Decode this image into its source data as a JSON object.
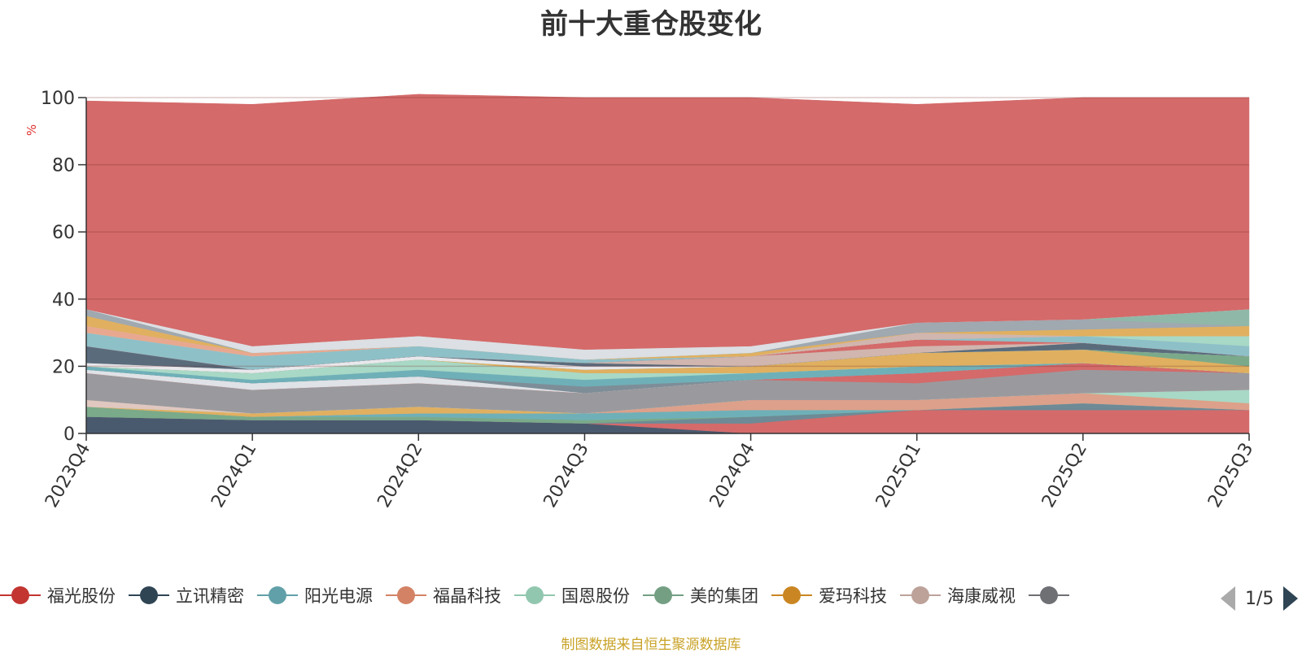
{
  "title": "前十大重仓股变化",
  "source_note": "制图数据来自恒生聚源数据库",
  "legend": {
    "items": [
      {
        "label": "福光股份",
        "color": "#c23531"
      },
      {
        "label": "立讯精密",
        "color": "#2f4554"
      },
      {
        "label": "阳光电源",
        "color": "#61a0a8"
      },
      {
        "label": "福晶科技",
        "color": "#d48265"
      },
      {
        "label": "国恩股份",
        "color": "#91c7ae"
      },
      {
        "label": "美的集团",
        "color": "#749f83"
      },
      {
        "label": "爱玛科技",
        "color": "#ca8622"
      },
      {
        "label": "海康威视",
        "color": "#bda29a"
      },
      {
        "label": "",
        "color": "#6e7074"
      }
    ],
    "pager_text": "1/5"
  },
  "chart_data": {
    "type": "area",
    "stacked": true,
    "title": "前十大重仓股变化",
    "ylabel": "%",
    "ylim": [
      0,
      100
    ],
    "yticks": [
      "0",
      "20",
      "40",
      "60",
      "80",
      "100"
    ],
    "categories": [
      "2023Q4",
      "2024Q1",
      "2024Q2",
      "2024Q3",
      "2024Q4",
      "2025Q1",
      "2025Q2",
      "2025Q3"
    ],
    "grid": true,
    "legend_position": "bottom",
    "series": [
      {
        "name": "",
        "color": "#4a5a6e",
        "values": [
          5,
          4,
          4,
          3,
          0,
          0,
          0,
          0
        ]
      },
      {
        "name": "",
        "color": "#d46a6a",
        "values": [
          0,
          0,
          0,
          0,
          3,
          7,
          7,
          7
        ]
      },
      {
        "name": "",
        "color": "#6d8a96",
        "values": [
          0,
          0,
          0,
          0,
          2,
          0,
          2,
          0
        ]
      },
      {
        "name": "",
        "color": "#7aaa8a",
        "values": [
          3,
          1,
          1,
          1,
          0,
          0,
          0,
          0
        ]
      },
      {
        "name": "",
        "color": "#6fb0b8",
        "values": [
          0,
          0,
          1,
          2,
          2,
          0,
          0,
          0
        ]
      },
      {
        "name": "",
        "color": "#dda08a",
        "values": [
          0,
          0,
          0,
          0,
          3,
          3,
          3,
          2
        ]
      },
      {
        "name": "",
        "color": "#e0b060",
        "values": [
          0,
          1,
          2,
          0,
          0,
          0,
          0,
          0
        ]
      },
      {
        "name": "",
        "color": "#a8d8c6",
        "values": [
          0,
          0,
          0,
          0,
          0,
          0,
          0,
          4
        ]
      },
      {
        "name": "",
        "color": "#e0c8c0",
        "values": [
          2,
          0,
          0,
          0,
          0,
          0,
          0,
          0
        ]
      },
      {
        "name": "",
        "color": "#9a9a9e",
        "values": [
          8,
          7,
          7,
          6,
          6,
          5,
          7,
          5
        ]
      },
      {
        "name": "",
        "color": "#d46a6a",
        "values": [
          0,
          0,
          0,
          0,
          0,
          3,
          2,
          0
        ]
      },
      {
        "name": "",
        "color": "#dfe2e6",
        "values": [
          1,
          2,
          2,
          0,
          0,
          0,
          0,
          0
        ]
      },
      {
        "name": "",
        "color": "#7e8e98",
        "values": [
          0,
          0,
          0,
          2,
          0,
          0,
          0,
          0
        ]
      },
      {
        "name": "",
        "color": "#6fb0b8",
        "values": [
          1,
          1,
          2,
          2,
          2,
          2,
          0,
          0
        ]
      },
      {
        "name": "",
        "color": "#a8d8c6",
        "values": [
          0,
          2,
          3,
          2,
          0,
          0,
          0,
          0
        ]
      },
      {
        "name": "",
        "color": "#e0b060",
        "values": [
          0,
          0,
          0,
          1,
          2,
          4,
          4,
          2
        ]
      },
      {
        "name": "",
        "color": "#7aaa8a",
        "values": [
          0,
          0,
          0,
          0,
          0,
          0,
          0,
          3
        ]
      },
      {
        "name": "",
        "color": "#e8e8ec",
        "values": [
          1,
          1,
          1,
          1,
          0,
          0,
          0,
          0
        ]
      },
      {
        "name": "",
        "color": "#5a6c7c",
        "values": [
          5,
          0,
          0,
          1,
          0,
          0,
          2,
          0
        ]
      },
      {
        "name": "",
        "color": "#d0b6ae",
        "values": [
          0,
          0,
          0,
          0,
          3,
          2,
          0,
          0
        ]
      },
      {
        "name": "",
        "color": "#d46a6a",
        "values": [
          0,
          0,
          0,
          0,
          0,
          2,
          0,
          0
        ]
      },
      {
        "name": "",
        "color": "#8ec0c8",
        "values": [
          4,
          4,
          3,
          1,
          0,
          0,
          2,
          3
        ]
      },
      {
        "name": "",
        "color": "#a8d8c6",
        "values": [
          0,
          0,
          0,
          0,
          0,
          0,
          0,
          3
        ]
      },
      {
        "name": "",
        "color": "#e8a890",
        "values": [
          2,
          1,
          0,
          0,
          0,
          0,
          0,
          0
        ]
      },
      {
        "name": "",
        "color": "#d0b6ae",
        "values": [
          0,
          0,
          0,
          0,
          0,
          2,
          0,
          0
        ]
      },
      {
        "name": "",
        "color": "#e0b060",
        "values": [
          3,
          0,
          0,
          0,
          1,
          0,
          2,
          3
        ]
      },
      {
        "name": "",
        "color": "#a0a8b0",
        "values": [
          2,
          0,
          0,
          0,
          0,
          3,
          3,
          0
        ]
      },
      {
        "name": "",
        "color": "#8fb8a8",
        "values": [
          0,
          0,
          0,
          0,
          0,
          0,
          0,
          5
        ]
      },
      {
        "name": "",
        "color": "#dcdfe3",
        "values": [
          0,
          2,
          3,
          3,
          2,
          0,
          0,
          0
        ]
      },
      {
        "name": "",
        "color": "#d46a6a",
        "values": [
          62,
          72,
          72,
          75,
          74,
          65,
          66,
          63
        ]
      }
    ]
  }
}
